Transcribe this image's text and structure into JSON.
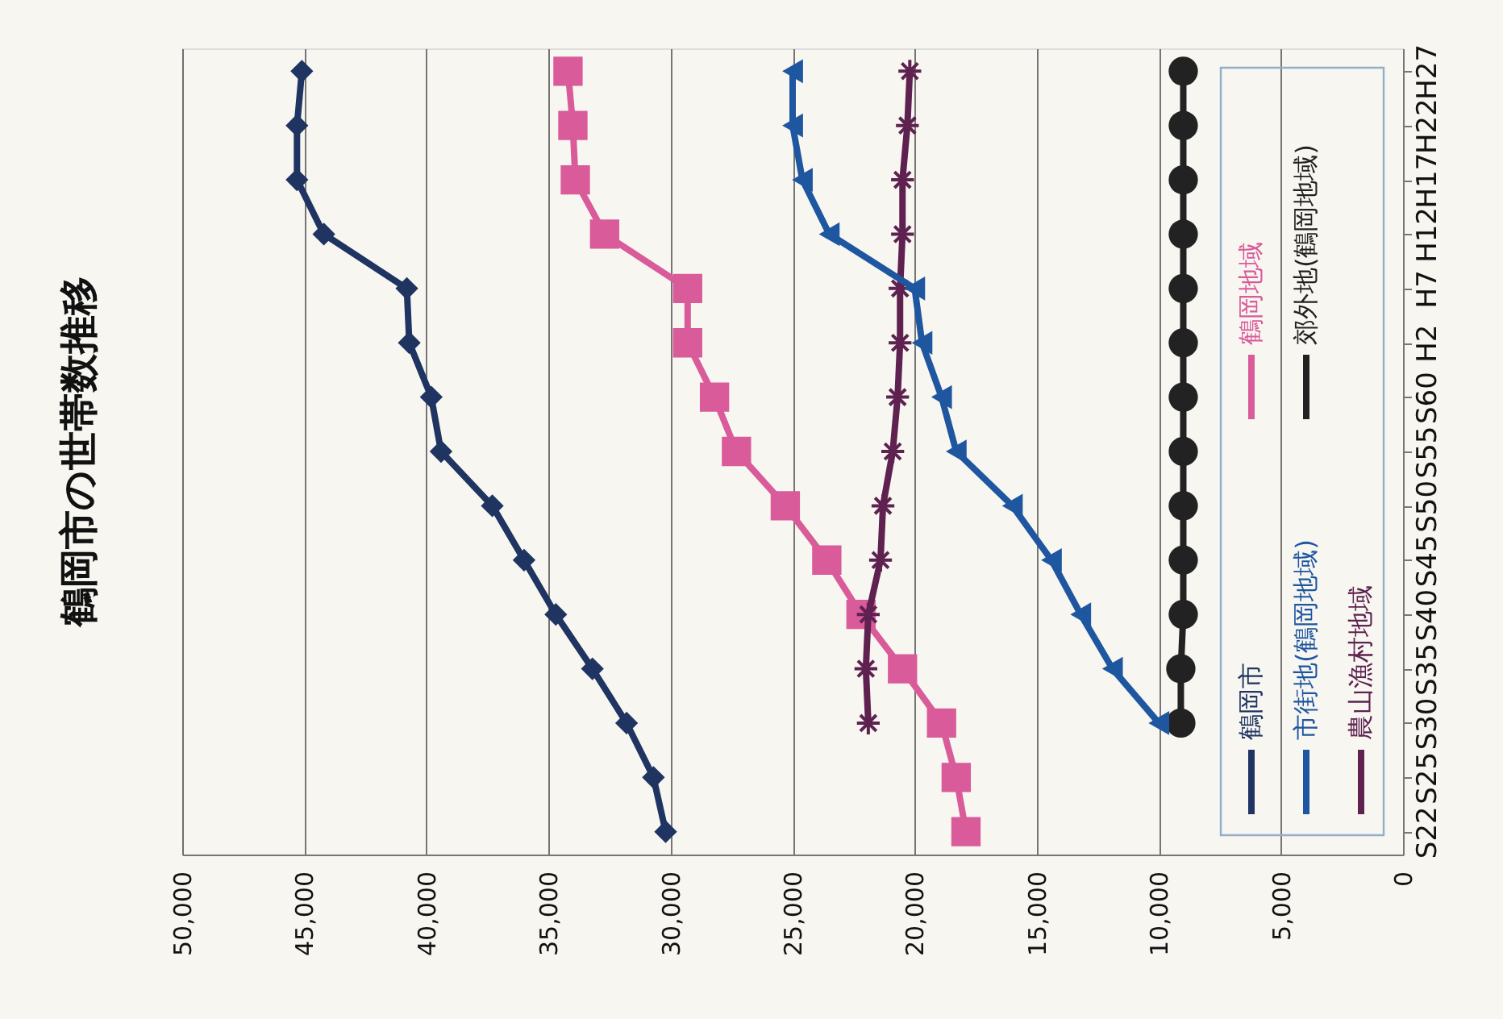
{
  "chart_data": {
    "type": "line",
    "title": "鶴岡市の世帯数推移",
    "orientation": "horizontal",
    "categories": [
      "H27",
      "H22",
      "H17",
      "H12",
      "H7",
      "H2",
      "S60",
      "S55",
      "S50",
      "S45",
      "S40",
      "S35",
      "S30",
      "S25",
      "S22"
    ],
    "series": [
      {
        "name": "鶴岡市",
        "color": "#1f3461",
        "marker": "diamond",
        "values": [
          45100,
          45300,
          45300,
          44200,
          40800,
          40700,
          39800,
          39400,
          37300,
          36000,
          34700,
          33200,
          31800,
          30700,
          30200
        ]
      },
      {
        "name": "鶴岡地域",
        "color": "#d95b9a",
        "marker": "square",
        "values": [
          34200,
          34000,
          33900,
          32700,
          29300,
          29300,
          28200,
          27300,
          25300,
          23600,
          22200,
          20500,
          18900,
          18300,
          17900
        ]
      },
      {
        "name": "市街地(鶴岡地域)",
        "color": "#1f56a0",
        "marker": "triangle",
        "values": [
          25000,
          25000,
          24600,
          23500,
          20000,
          19700,
          18900,
          18300,
          16000,
          14400,
          13200,
          11900,
          10000,
          null,
          null
        ]
      },
      {
        "name": "郊外地(鶴岡地域)",
        "color": "#222222",
        "marker": "circle",
        "values": [
          9000,
          9000,
          9000,
          9000,
          9000,
          9000,
          9000,
          9000,
          9000,
          9000,
          9000,
          9100,
          9100,
          null,
          null
        ]
      },
      {
        "name": "農山漁村地域",
        "color": "#5e2150",
        "marker": "cross",
        "values": [
          20200,
          20300,
          20500,
          20500,
          20600,
          20600,
          20700,
          20900,
          21300,
          21400,
          21900,
          22000,
          21900,
          null,
          null
        ]
      }
    ],
    "xlim": [
      50000,
      0
    ],
    "xticks": [
      {
        "value": 50000,
        "label": "50,000"
      },
      {
        "value": 45000,
        "label": "45,000"
      },
      {
        "value": 40000,
        "label": "40,000"
      },
      {
        "value": 35000,
        "label": "35,000"
      },
      {
        "value": 30000,
        "label": "30,000"
      },
      {
        "value": 25000,
        "label": "25,000"
      },
      {
        "value": 20000,
        "label": "20,000"
      },
      {
        "value": 15000,
        "label": "15,000"
      },
      {
        "value": 10000,
        "label": "10,000"
      },
      {
        "value": 5000,
        "label": "5,000"
      },
      0
    ],
    "grid": "x",
    "legend": "top right"
  }
}
